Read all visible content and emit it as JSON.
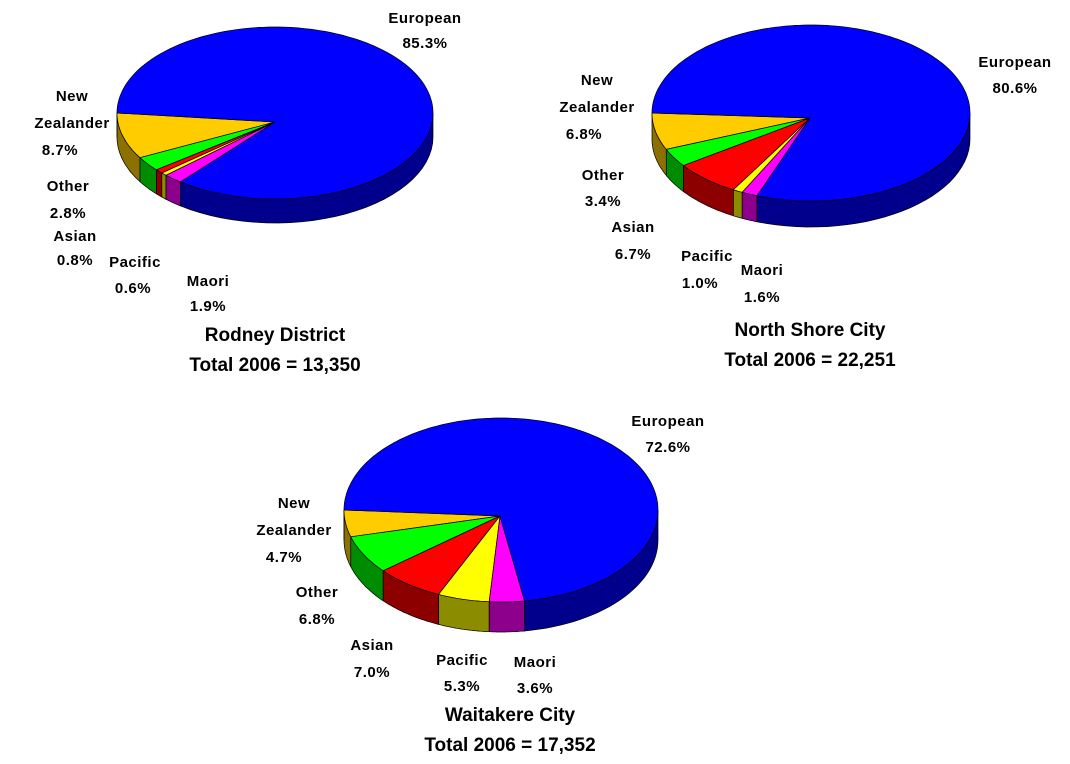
{
  "chart_data": [
    {
      "type": "pie",
      "title": "Rodney District",
      "subtitle": "Total 2006 = 13,350",
      "categories": [
        "European",
        "New Zealander",
        "Other",
        "Asian",
        "Pacific",
        "Maori"
      ],
      "values": [
        85.3,
        8.7,
        2.8,
        0.8,
        0.6,
        1.9
      ],
      "value_labels": [
        "85.3%",
        "8.7%",
        "2.8%",
        "0.8%",
        "0.6%",
        "1.9%"
      ],
      "colors": [
        "#0000ff",
        "#ffcc00",
        "#00ff00",
        "#ff0000",
        "#ffff00",
        "#ff00ff"
      ]
    },
    {
      "type": "pie",
      "title": "North Shore City",
      "subtitle": "Total 2006 = 22,251",
      "categories": [
        "European",
        "New Zealander",
        "Other",
        "Asian",
        "Pacific",
        "Maori"
      ],
      "values": [
        80.6,
        6.8,
        3.4,
        6.7,
        1.0,
        1.6
      ],
      "value_labels": [
        "80.6%",
        "6.8%",
        "3.4%",
        "6.7%",
        "1.0%",
        "1.6%"
      ],
      "colors": [
        "#0000ff",
        "#ffcc00",
        "#00ff00",
        "#ff0000",
        "#ffff00",
        "#ff00ff"
      ]
    },
    {
      "type": "pie",
      "title": "Waitakere City",
      "subtitle": "Total 2006 = 17,352",
      "categories": [
        "European",
        "New Zealander",
        "Other",
        "Asian",
        "Pacific",
        "Maori"
      ],
      "values": [
        72.6,
        4.7,
        6.8,
        7.0,
        5.3,
        3.6
      ],
      "value_labels": [
        "72.6%",
        "4.7%",
        "6.8%",
        "7.0%",
        "5.3%",
        "3.6%"
      ],
      "colors": [
        "#0000ff",
        "#ffcc00",
        "#00ff00",
        "#ff0000",
        "#ffff00",
        "#ff00ff"
      ]
    }
  ]
}
